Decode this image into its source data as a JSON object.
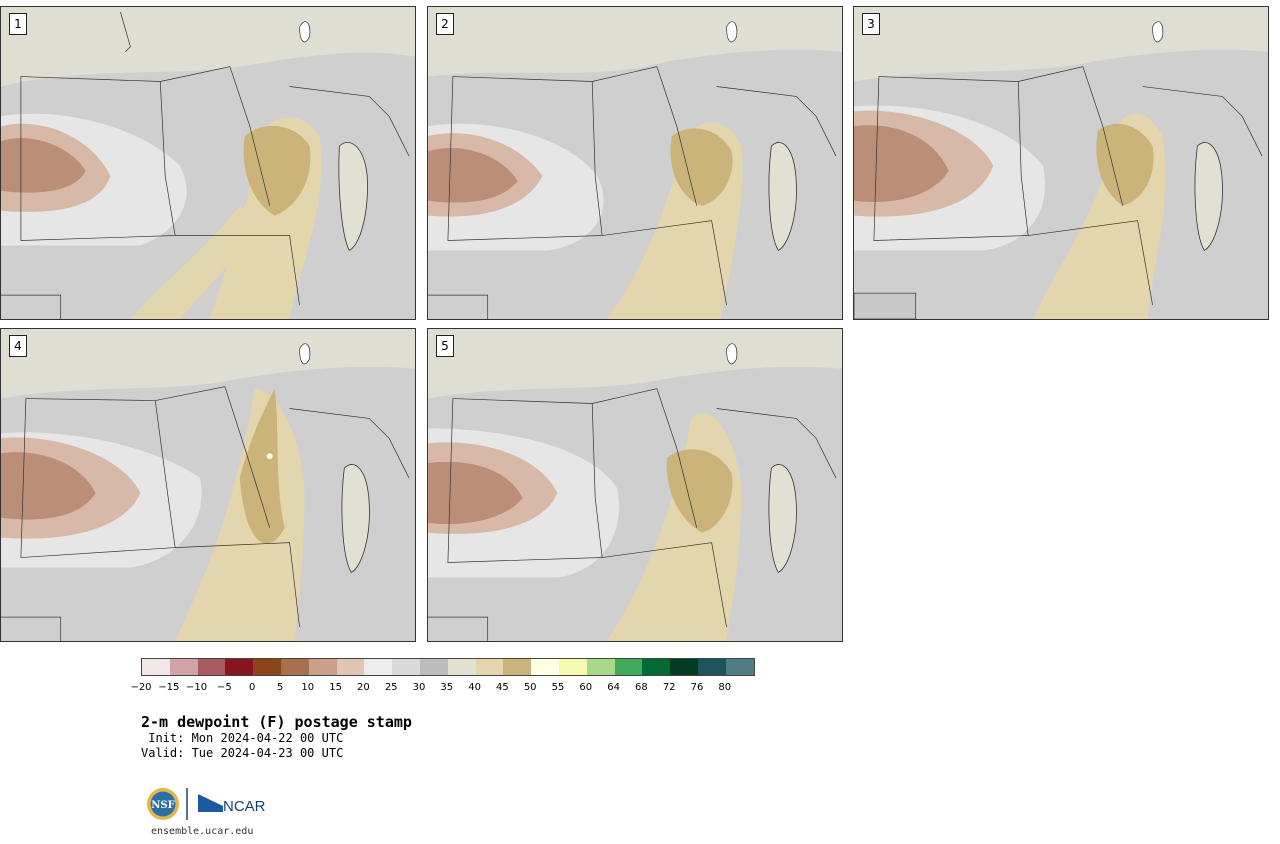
{
  "panels": [
    {
      "label": "1"
    },
    {
      "label": "2"
    },
    {
      "label": "3"
    },
    {
      "label": "4"
    },
    {
      "label": "5"
    }
  ],
  "colorbar": {
    "colors": [
      "#f3e6e6",
      "#d2a3a6",
      "#a85a60",
      "#8a1520",
      "#8a4519",
      "#a8704f",
      "#c9a08a",
      "#e0c5b5",
      "#ececec",
      "#d9d9d9",
      "#bcbcbc",
      "#e0e0d3",
      "#e5d5ad",
      "#cbb37a",
      "#ffffe3",
      "#f6f8b0",
      "#a6d98a",
      "#3faa5a",
      "#006b35",
      "#003b23",
      "#1d545c",
      "#4e7c82"
    ],
    "tick_labels": [
      "−20",
      "−15",
      "−10",
      "−5",
      "0",
      "5",
      "10",
      "15",
      "20",
      "25",
      "30",
      "35",
      "40",
      "45",
      "50",
      "55",
      "60",
      "64",
      "68",
      "72",
      "76",
      "80"
    ]
  },
  "title": "2-m dewpoint (F) postage stamp",
  "init": " Init: Mon 2024-04-22 00 UTC",
  "valid": "Valid: Tue 2024-04-23 00 UTC",
  "logos": {
    "nsf": "NSF",
    "ncar": "NCAR"
  },
  "url": "ensemble.ucar.edu"
}
